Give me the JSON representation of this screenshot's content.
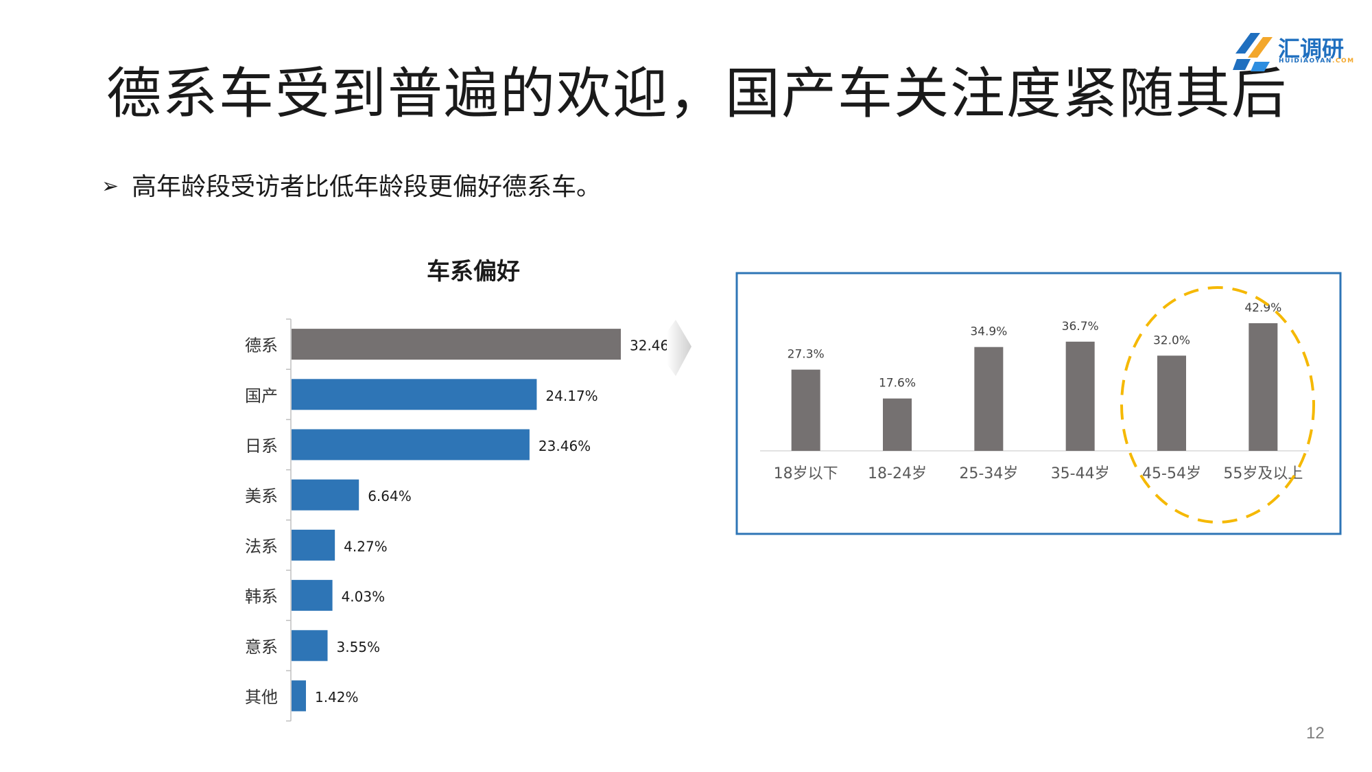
{
  "slide": {
    "title": "德系车受到普遍的欢迎，国产车关注度紧随其后",
    "bullet": "高年龄段受访者比低年龄段更偏好德系车。",
    "bullet_marker": "➢",
    "page_number": "12"
  },
  "logo": {
    "name": "汇调研",
    "sub_main": "HUiDiAOYAN",
    "sub_accent": ".COM"
  },
  "chart_data": [
    {
      "type": "bar",
      "orientation": "horizontal",
      "title": "车系偏好",
      "categories": [
        "德系",
        "国产",
        "日系",
        "美系",
        "法系",
        "韩系",
        "意系",
        "其他"
      ],
      "values": [
        32.46,
        24.17,
        23.46,
        6.64,
        4.27,
        4.03,
        3.55,
        1.42
      ],
      "labels": [
        "32.46%",
        "24.17%",
        "23.46%",
        "6.64%",
        "4.27%",
        "4.03%",
        "3.55%",
        "1.42%"
      ],
      "highlight_color": "#757171",
      "bar_color": "#2e75b6"
    },
    {
      "type": "bar",
      "title": "",
      "categories": [
        "18岁以下",
        "18-24岁",
        "25-34岁",
        "35-44岁",
        "45-54岁",
        "55岁及以上"
      ],
      "values": [
        27.3,
        17.6,
        34.9,
        36.7,
        32.0,
        42.9
      ],
      "labels": [
        "27.3%",
        "17.6%",
        "34.9%",
        "36.7%",
        "32.0%",
        "42.9%"
      ],
      "bar_color": "#757171",
      "frame_color": "#2e75b6",
      "highlight_color": "#f5b800",
      "highlighted_categories": [
        "45-54岁",
        "55岁及以上"
      ]
    }
  ]
}
